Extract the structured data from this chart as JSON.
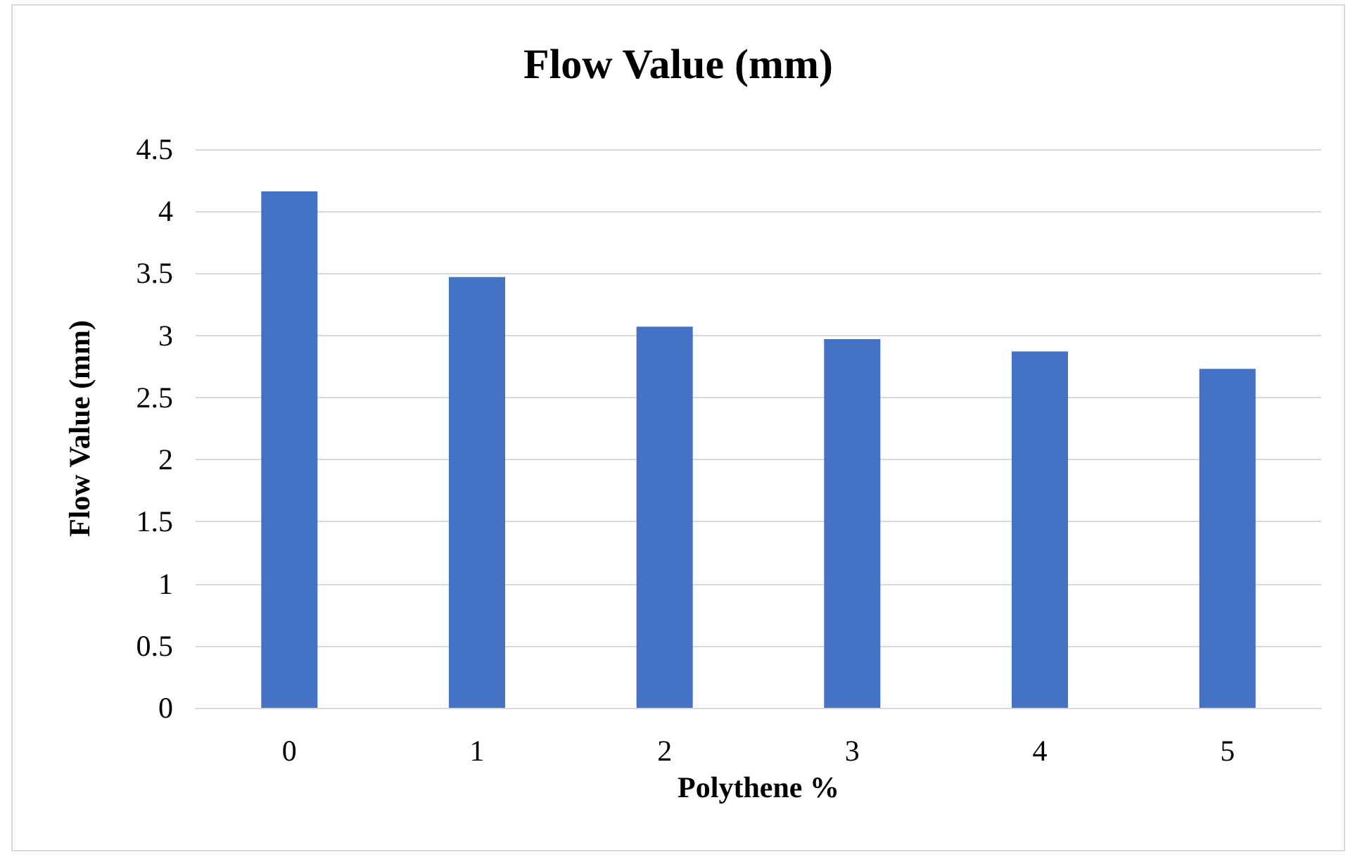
{
  "chart_data": {
    "type": "bar",
    "title": "Flow Value (mm)",
    "xlabel": "Polythene %",
    "ylabel": "Flow Value (mm)",
    "categories": [
      "0",
      "1",
      "2",
      "3",
      "4",
      "5"
    ],
    "values": [
      4.16,
      3.47,
      3.07,
      2.97,
      2.87,
      2.73
    ],
    "color": "#4472c4",
    "ylim": [
      0,
      4.5
    ],
    "yticks": [
      0,
      0.5,
      1,
      1.5,
      2,
      2.5,
      3,
      3.5,
      4,
      4.5
    ],
    "grid": "y"
  }
}
